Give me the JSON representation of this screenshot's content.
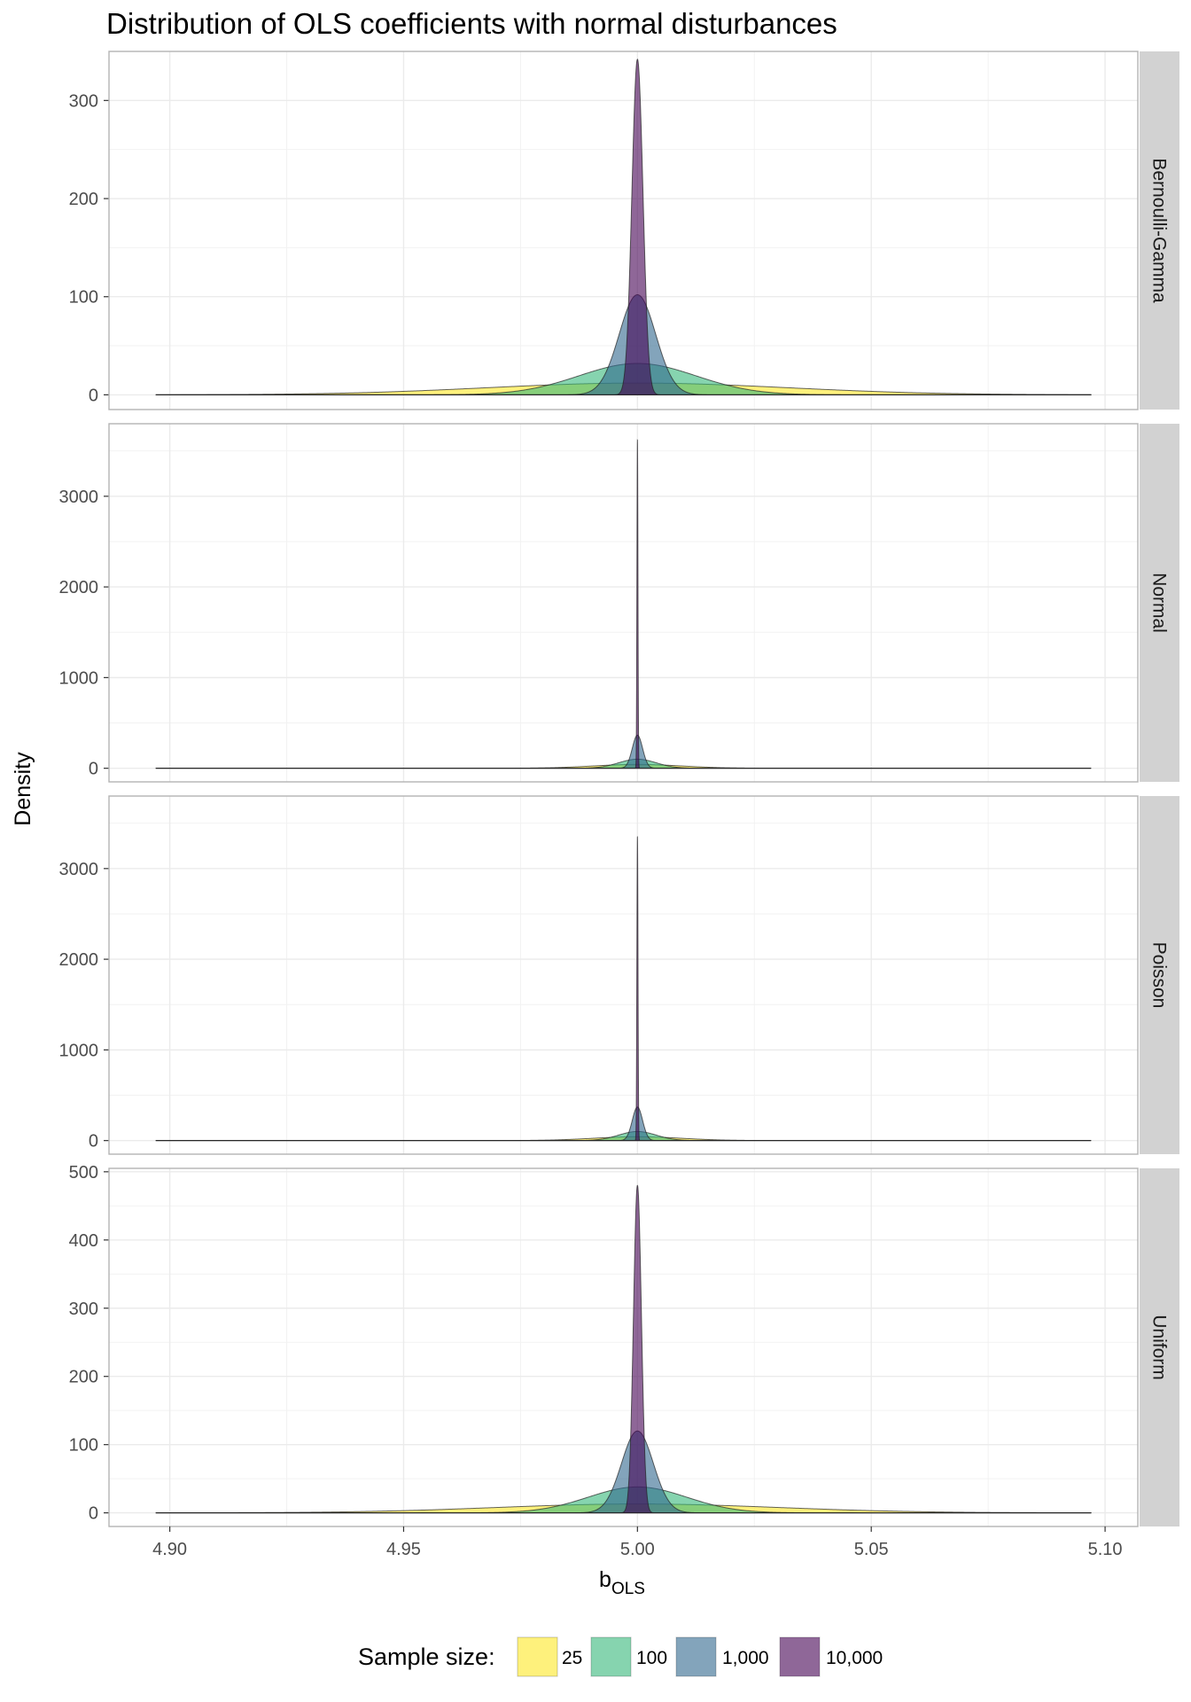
{
  "chart_data": {
    "type": "area",
    "title": "Distribution of OLS coefficients with normal disturbances",
    "xlabel": "b",
    "xlabel_subscript": "OLS",
    "ylabel": "Density",
    "x_ticks": [
      4.9,
      4.95,
      5.0,
      5.05,
      5.1
    ],
    "x_tick_labels": [
      "4.90",
      "4.95",
      "5.00",
      "5.05",
      "5.10"
    ],
    "xlim": [
      4.887,
      5.107
    ],
    "x_range_data": [
      4.897,
      5.097
    ],
    "center": 5.0,
    "grid": true,
    "legend_position": "bottom",
    "legend": {
      "title": "Sample size:",
      "items": [
        {
          "label": "25",
          "color": "#FDE725"
        },
        {
          "label": "100",
          "color": "#35B779"
        },
        {
          "label": "1,000",
          "color": "#31688E"
        },
        {
          "label": "10,000",
          "color": "#440154"
        }
      ]
    },
    "panels": [
      {
        "strip": "Bernoulli-Gamma",
        "ylim": [
          -15,
          350
        ],
        "y_ticks": [
          0,
          100,
          200,
          300
        ],
        "y_tick_labels": [
          "0",
          "100",
          "200",
          "300"
        ],
        "series": [
          {
            "name": "25",
            "sd": 0.032,
            "peak": 12
          },
          {
            "name": "100",
            "sd": 0.0125,
            "peak": 32
          },
          {
            "name": "1,000",
            "sd": 0.0039,
            "peak": 102
          },
          {
            "name": "10,000",
            "sd": 0.00118,
            "peak": 342
          }
        ]
      },
      {
        "strip": "Normal",
        "ylim": [
          -150,
          3800
        ],
        "y_ticks": [
          0,
          1000,
          2000,
          3000
        ],
        "y_tick_labels": [
          "0",
          "1000",
          "2000",
          "3000"
        ],
        "series": [
          {
            "name": "25",
            "sd": 0.0094,
            "peak": 42
          },
          {
            "name": "100",
            "sd": 0.004,
            "peak": 100
          },
          {
            "name": "1,000",
            "sd": 0.0011,
            "peak": 365
          },
          {
            "name": "10,000",
            "sd": 0.00011,
            "peak": 3620
          }
        ]
      },
      {
        "strip": "Poisson",
        "ylim": [
          -150,
          3800
        ],
        "y_ticks": [
          0,
          1000,
          2000,
          3000
        ],
        "y_tick_labels": [
          "0",
          "1000",
          "2000",
          "3000"
        ],
        "series": [
          {
            "name": "25",
            "sd": 0.0094,
            "peak": 42
          },
          {
            "name": "100",
            "sd": 0.004,
            "peak": 100
          },
          {
            "name": "1,000",
            "sd": 0.0011,
            "peak": 370
          },
          {
            "name": "10,000",
            "sd": 0.00012,
            "peak": 3350
          }
        ]
      },
      {
        "strip": "Uniform",
        "ylim": [
          -20,
          505
        ],
        "y_ticks": [
          0,
          100,
          200,
          300,
          400,
          500
        ],
        "y_tick_labels": [
          "0",
          "100",
          "200",
          "300",
          "400",
          "500"
        ],
        "series": [
          {
            "name": "25",
            "sd": 0.03,
            "peak": 13
          },
          {
            "name": "100",
            "sd": 0.0105,
            "peak": 38
          },
          {
            "name": "1,000",
            "sd": 0.0034,
            "peak": 120
          },
          {
            "name": "10,000",
            "sd": 0.00085,
            "peak": 480
          }
        ]
      }
    ]
  }
}
